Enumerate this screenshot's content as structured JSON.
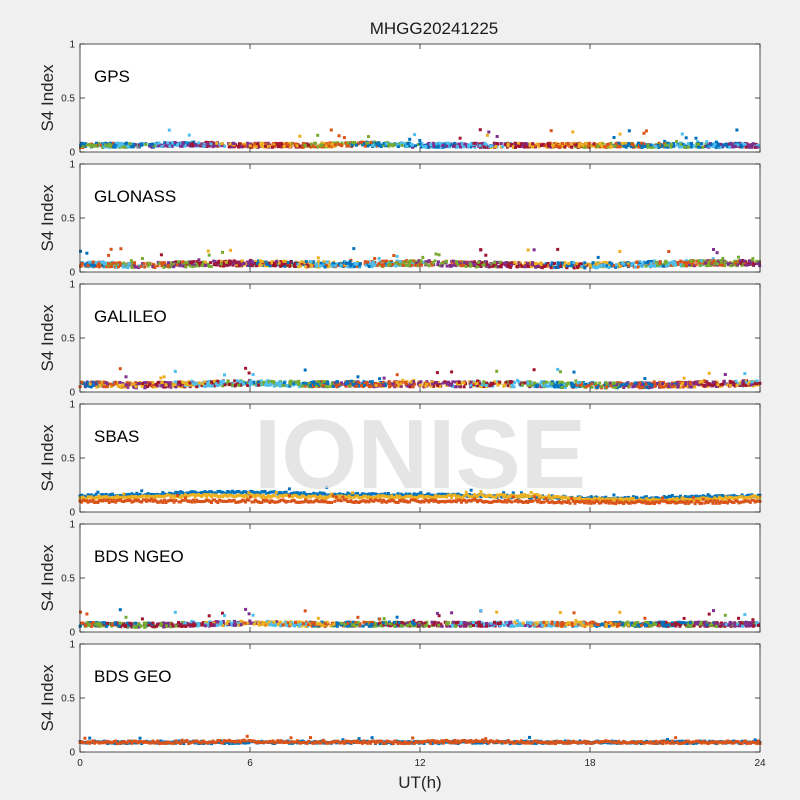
{
  "title": "MHGG20241225",
  "watermark": "IONISE",
  "colors": [
    "#0072BD",
    "#D95319",
    "#EDB120",
    "#7E2F8E",
    "#77AC30",
    "#4DBEEE",
    "#A2142F"
  ],
  "chart_data": [
    {
      "type": "scatter",
      "label": "GPS",
      "ylabel": "S4 Index",
      "xlim": [
        0,
        24
      ],
      "ylim": [
        0,
        1
      ],
      "yticks": [
        "0",
        "0.5",
        "1"
      ],
      "xticks": [
        "0",
        "6",
        "12",
        "18",
        "24"
      ],
      "grid": false,
      "series_colors": [
        "#D95319",
        "#77AC30",
        "#0072BD",
        "#4DBEEE",
        "#7E2F8E",
        "#A2142F",
        "#EDB120"
      ],
      "level": [
        0.06,
        0.06,
        0.07,
        0.06,
        0.06,
        0.07,
        0.06,
        0.06,
        0.06,
        0.06,
        0.06,
        0.06,
        0.06
      ],
      "spread": 0.04,
      "peak": 0.21
    },
    {
      "type": "scatter",
      "label": "GLONASS",
      "ylabel": "S4 Index",
      "xlim": [
        0,
        24
      ],
      "ylim": [
        0,
        1
      ],
      "yticks": [
        "0",
        "0.5",
        "1"
      ],
      "xticks": [
        "0",
        "6",
        "12",
        "18",
        "24"
      ],
      "grid": false,
      "series_colors": [
        "#0072BD",
        "#4DBEEE",
        "#D95319",
        "#77AC30",
        "#7E2F8E",
        "#A2142F",
        "#EDB120"
      ],
      "level": [
        0.07,
        0.06,
        0.07,
        0.08,
        0.07,
        0.07,
        0.08,
        0.07,
        0.06,
        0.06,
        0.07,
        0.08,
        0.08
      ],
      "spread": 0.05,
      "peak": 0.22
    },
    {
      "type": "scatter",
      "label": "GALILEO",
      "ylabel": "S4 Index",
      "xlim": [
        0,
        24
      ],
      "ylim": [
        0,
        1
      ],
      "yticks": [
        "0",
        "0.5",
        "1"
      ],
      "xticks": [
        "0",
        "6",
        "12",
        "18",
        "24"
      ],
      "grid": false,
      "series_colors": [
        "#0072BD",
        "#D95319",
        "#7E2F8E",
        "#EDB120",
        "#A2142F",
        "#4DBEEE",
        "#77AC30"
      ],
      "level": [
        0.07,
        0.06,
        0.07,
        0.08,
        0.07,
        0.07,
        0.07,
        0.07,
        0.07,
        0.06,
        0.06,
        0.07,
        0.08
      ],
      "spread": 0.05,
      "peak": 0.22
    },
    {
      "type": "scatter",
      "label": "SBAS",
      "ylabel": "S4 Index",
      "xlim": [
        0,
        24
      ],
      "ylim": [
        0,
        1
      ],
      "yticks": [
        "0",
        "0.5",
        "1"
      ],
      "xticks": [
        "0",
        "6",
        "12",
        "18",
        "24"
      ],
      "grid": false,
      "bands": [
        {
          "color": "#0072BD",
          "values": [
            0.15,
            0.16,
            0.18,
            0.18,
            0.17,
            0.16,
            0.16,
            0.15,
            0.14,
            0.13,
            0.13,
            0.14,
            0.15
          ]
        },
        {
          "color": "#EDB120",
          "values": [
            0.13,
            0.14,
            0.15,
            0.15,
            0.14,
            0.14,
            0.14,
            0.15,
            0.15,
            0.12,
            0.11,
            0.12,
            0.14
          ]
        },
        {
          "color": "#D95319",
          "values": [
            0.1,
            0.1,
            0.1,
            0.1,
            0.1,
            0.1,
            0.1,
            0.1,
            0.1,
            0.09,
            0.09,
            0.09,
            0.1
          ]
        }
      ]
    },
    {
      "type": "scatter",
      "label": "BDS NGEO",
      "ylabel": "S4 Index",
      "xlim": [
        0,
        24
      ],
      "ylim": [
        0,
        1
      ],
      "yticks": [
        "0",
        "0.5",
        "1"
      ],
      "xticks": [
        "0",
        "6",
        "12",
        "18",
        "24"
      ],
      "grid": false,
      "series_colors": [
        "#D95319",
        "#0072BD",
        "#77AC30",
        "#A2142F",
        "#7E2F8E",
        "#4DBEEE",
        "#EDB120"
      ],
      "level": [
        0.07,
        0.06,
        0.07,
        0.08,
        0.07,
        0.07,
        0.07,
        0.07,
        0.07,
        0.07,
        0.07,
        0.07,
        0.07
      ],
      "spread": 0.04,
      "peak": 0.21
    },
    {
      "type": "scatter",
      "label": "BDS GEO",
      "ylabel": "S4 Index",
      "xlim": [
        0,
        24
      ],
      "ylim": [
        0,
        1
      ],
      "yticks": [
        "0",
        "0.5",
        "1"
      ],
      "xticks": [
        "0",
        "6",
        "12",
        "18",
        "24"
      ],
      "grid": false,
      "bands": [
        {
          "color": "#0072BD",
          "values": [
            0.09,
            0.09,
            0.09,
            0.09,
            0.09,
            0.09,
            0.09,
            0.09,
            0.09,
            0.09,
            0.09,
            0.09,
            0.09
          ]
        },
        {
          "color": "#D95319",
          "values": [
            0.09,
            0.09,
            0.09,
            0.1,
            0.09,
            0.09,
            0.09,
            0.1,
            0.09,
            0.09,
            0.09,
            0.09,
            0.09
          ]
        }
      ]
    }
  ],
  "xlabel": "UT(h)"
}
